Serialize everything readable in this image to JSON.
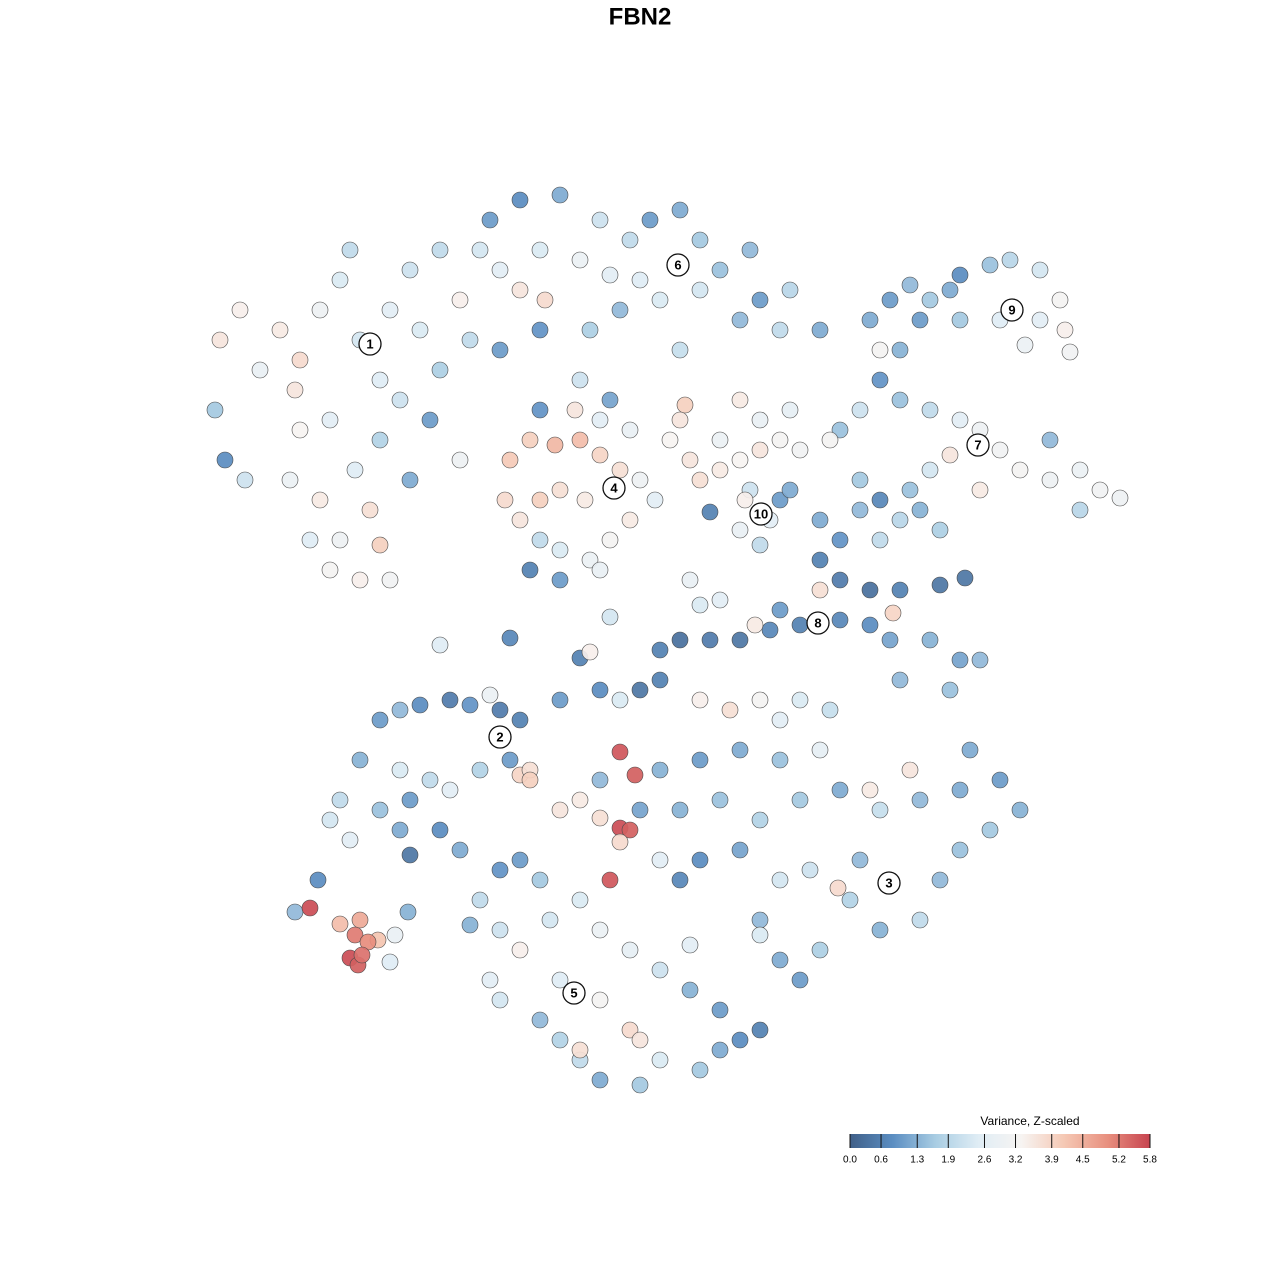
{
  "chart_data": {
    "type": "scatter",
    "title": "FBN2",
    "xlim": [
      0,
      1280
    ],
    "ylim": [
      1280,
      0
    ],
    "x": [
      220,
      240,
      260,
      215,
      225,
      245,
      280,
      300,
      295,
      320,
      340,
      350,
      330,
      300,
      290,
      320,
      340,
      330,
      360,
      380,
      370,
      355,
      380,
      400,
      380,
      360,
      390,
      410,
      440,
      420,
      440,
      460,
      470,
      410,
      430,
      460,
      390,
      310,
      490,
      520,
      560,
      540,
      500,
      520,
      545,
      580,
      600,
      630,
      650,
      680,
      700,
      720,
      750,
      760,
      790,
      820,
      780,
      740,
      700,
      660,
      620,
      590,
      640,
      610,
      480,
      500,
      540,
      680,
      510,
      530,
      555,
      580,
      600,
      620,
      640,
      655,
      630,
      610,
      590,
      560,
      540,
      520,
      505,
      530,
      560,
      600,
      585,
      560,
      540,
      575,
      600,
      630,
      540,
      580,
      610,
      670,
      690,
      700,
      720,
      740,
      760,
      780,
      800,
      740,
      760,
      685,
      680,
      720,
      790,
      750,
      770,
      760,
      780,
      790,
      745,
      740,
      710,
      870,
      890,
      910,
      930,
      950,
      960,
      990,
      1010,
      1040,
      1060,
      1065,
      1070,
      1040,
      1025,
      1000,
      960,
      920,
      900,
      880,
      900,
      930,
      960,
      980,
      1000,
      1020,
      1050,
      1080,
      1100,
      1120,
      1080,
      1050,
      980,
      950,
      930,
      910,
      880,
      860,
      840,
      860,
      830,
      880,
      820,
      840,
      870,
      900,
      940,
      965,
      820,
      840,
      860,
      880,
      900,
      920,
      940,
      930,
      960,
      980,
      950,
      900,
      890,
      870,
      840,
      800,
      770,
      740,
      710,
      680,
      660,
      780,
      755,
      893,
      820,
      440,
      510,
      580,
      590,
      610,
      700,
      720,
      690,
      340,
      330,
      350,
      360,
      380,
      400,
      420,
      450,
      470,
      490,
      500,
      520,
      510,
      520,
      530,
      530,
      480,
      450,
      430,
      410,
      400,
      410,
      380,
      400,
      460,
      440,
      560,
      600,
      620,
      640,
      660,
      700,
      730,
      760,
      780,
      800,
      830,
      820,
      780,
      740,
      700,
      660,
      620,
      635,
      600,
      580,
      560,
      600,
      620,
      630,
      620,
      610,
      640,
      680,
      720,
      760,
      800,
      840,
      870,
      880,
      910,
      920,
      960,
      1000,
      1020,
      990,
      960,
      940,
      920,
      880,
      850,
      838,
      810,
      780,
      760,
      780,
      800,
      820,
      860,
      970,
      700,
      660,
      680,
      740,
      760,
      480,
      500,
      520,
      490,
      500,
      540,
      560,
      580,
      600,
      640,
      660,
      700,
      720,
      740,
      760,
      720,
      690,
      660,
      630,
      600,
      580,
      540,
      550,
      560,
      600,
      630,
      580,
      520,
      500,
      470,
      640,
      690,
      295,
      310,
      318,
      340,
      360,
      378,
      355,
      368,
      350,
      358,
      362,
      390,
      395,
      408
    ],
    "y": [
      340,
      310,
      370,
      410,
      460,
      480,
      330,
      360,
      390,
      310,
      280,
      250,
      420,
      430,
      480,
      500,
      540,
      570,
      580,
      545,
      510,
      470,
      440,
      400,
      380,
      340,
      310,
      270,
      250,
      330,
      370,
      300,
      340,
      480,
      420,
      460,
      580,
      540,
      220,
      200,
      195,
      250,
      270,
      290,
      300,
      260,
      220,
      240,
      220,
      210,
      240,
      270,
      250,
      300,
      290,
      330,
      330,
      320,
      290,
      300,
      310,
      330,
      280,
      275,
      250,
      350,
      330,
      350,
      460,
      440,
      445,
      440,
      455,
      470,
      480,
      500,
      520,
      540,
      560,
      550,
      540,
      520,
      500,
      570,
      580,
      570,
      500,
      490,
      500,
      410,
      420,
      430,
      410,
      380,
      400,
      440,
      460,
      480,
      470,
      460,
      450,
      440,
      450,
      400,
      420,
      405,
      420,
      440,
      410,
      490,
      520,
      545,
      500,
      490,
      500,
      530,
      512,
      320,
      300,
      285,
      300,
      290,
      275,
      265,
      260,
      270,
      300,
      330,
      352,
      320,
      345,
      320,
      320,
      320,
      350,
      380,
      400,
      410,
      420,
      430,
      450,
      470,
      480,
      470,
      490,
      498,
      510,
      440,
      490,
      455,
      470,
      490,
      500,
      480,
      430,
      410,
      440,
      350,
      560,
      580,
      590,
      590,
      585,
      578,
      520,
      540,
      510,
      540,
      520,
      510,
      530,
      640,
      660,
      660,
      690,
      680,
      640,
      625,
      620,
      625,
      630,
      640,
      640,
      640,
      650,
      610,
      625,
      613,
      590,
      645,
      638,
      658,
      652,
      617,
      605,
      600,
      580,
      800,
      820,
      840,
      760,
      720,
      710,
      705,
      700,
      705,
      695,
      710,
      720,
      760,
      775,
      770,
      780,
      770,
      790,
      780,
      800,
      830,
      855,
      810,
      770,
      850,
      830,
      700,
      690,
      700,
      690,
      680,
      700,
      710,
      700,
      720,
      700,
      710,
      750,
      760,
      750,
      760,
      770,
      752,
      775,
      780,
      800,
      810,
      818,
      828,
      830,
      842,
      880,
      810,
      810,
      800,
      820,
      800,
      790,
      790,
      810,
      770,
      800,
      790,
      780,
      810,
      830,
      850,
      880,
      920,
      930,
      900,
      888,
      870,
      880,
      920,
      960,
      980,
      950,
      860,
      750,
      860,
      860,
      880,
      850,
      935,
      900,
      930,
      950,
      980,
      1000,
      1020,
      1040,
      1060,
      1080,
      1085,
      1060,
      1070,
      1050,
      1040,
      1030,
      1010,
      990,
      970,
      950,
      930,
      900,
      880,
      920,
      980,
      1000,
      1030,
      1050,
      860,
      870,
      925,
      1040,
      945,
      912,
      908,
      880,
      924,
      920,
      940,
      935,
      942,
      958,
      965,
      955,
      962,
      935,
      912
    ],
    "values": [
      3.6,
      3.4,
      2.8,
      1.6,
      0.8,
      2.2,
      3.5,
      3.8,
      3.6,
      3.0,
      2.4,
      2.0,
      2.6,
      3.3,
      2.9,
      3.5,
      3.0,
      3.2,
      3.4,
      4.0,
      3.7,
      2.5,
      1.8,
      2.2,
      2.5,
      2.3,
      2.6,
      2.2,
      2.0,
      2.4,
      1.7,
      3.4,
      2.0,
      1.2,
      1.0,
      3.0,
      3.1,
      2.5,
      1.0,
      0.8,
      1.2,
      2.4,
      2.6,
      3.6,
      3.8,
      2.9,
      2.2,
      2.0,
      1.0,
      1.2,
      1.6,
      1.5,
      1.4,
      1.0,
      1.9,
      1.2,
      2.0,
      1.4,
      2.3,
      2.4,
      1.4,
      1.7,
      2.5,
      2.6,
      2.3,
      1.0,
      0.9,
      2.1,
      4.1,
      4.0,
      4.4,
      4.3,
      3.9,
      3.7,
      3.0,
      2.6,
      3.5,
      3.2,
      2.9,
      2.4,
      2.0,
      3.6,
      3.8,
      0.6,
      1.0,
      2.8,
      3.5,
      3.7,
      4.0,
      3.6,
      2.6,
      2.8,
      0.9,
      2.2,
      1.1,
      3.3,
      3.6,
      3.7,
      3.5,
      3.3,
      3.6,
      3.2,
      3.1,
      3.5,
      2.8,
      4.0,
      3.6,
      2.9,
      2.7,
      2.2,
      2.6,
      2.0,
      1.0,
      1.2,
      3.4,
      2.8,
      0.6,
      1.2,
      1.0,
      1.4,
      1.6,
      1.2,
      0.8,
      1.5,
      1.9,
      2.3,
      3.2,
      3.4,
      3.1,
      2.6,
      2.9,
      2.5,
      1.6,
      1.0,
      1.3,
      0.9,
      1.5,
      2.0,
      2.6,
      3.0,
      3.1,
      3.2,
      3.0,
      2.9,
      3.1,
      3.0,
      1.9,
      1.4,
      3.5,
      3.6,
      2.3,
      1.5,
      0.7,
      1.6,
      1.5,
      2.2,
      3.2,
      3.2,
      0.6,
      0.5,
      0.3,
      0.6,
      0.4,
      0.4,
      1.2,
      0.9,
      1.4,
      2.0,
      1.9,
      1.3,
      1.7,
      1.3,
      1.1,
      1.4,
      1.5,
      1.4,
      1.1,
      0.8,
      0.7,
      0.6,
      0.7,
      0.4,
      0.5,
      0.3,
      0.6,
      1.0,
      3.5,
      3.9,
      3.7,
      2.5,
      0.7,
      0.6,
      3.4,
      2.3,
      2.4,
      2.6,
      2.8,
      2.0,
      2.3,
      2.6,
      1.3,
      1.0,
      1.4,
      0.8,
      0.5,
      0.9,
      2.9,
      0.5,
      0.6,
      1.0,
      3.9,
      3.7,
      4.0,
      1.8,
      2.6,
      2.0,
      1.0,
      1.2,
      0.4,
      1.5,
      2.4,
      1.2,
      0.8,
      1.0,
      0.8,
      2.4,
      0.4,
      0.6,
      3.4,
      3.7,
      3.2,
      2.6,
      2.4,
      2.1,
      2.7,
      1.5,
      1.2,
      1.0,
      1.3,
      5.6,
      5.5,
      1.4,
      3.5,
      3.6,
      3.7,
      5.7,
      5.5,
      3.8,
      5.6,
      1.1,
      1.3,
      1.5,
      1.8,
      1.6,
      1.2,
      3.5,
      2.1,
      3.6,
      1.4,
      1.2,
      1.0,
      1.3,
      1.6,
      1.5,
      1.4,
      2.0,
      1.3,
      1.8,
      3.8,
      2.2,
      2.3,
      1.4,
      1.2,
      1.0,
      1.7,
      1.4,
      1.2,
      0.8,
      2.6,
      0.7,
      1.1,
      2.4,
      2.0,
      2.2,
      3.4,
      2.6,
      2.3,
      1.4,
      1.8,
      2.0,
      1.2,
      1.6,
      2.4,
      1.6,
      1.2,
      0.8,
      0.6,
      1.0,
      1.3,
      2.2,
      2.7,
      2.9,
      2.4,
      1.6,
      2.3,
      2.5,
      3.2,
      3.8,
      3.7,
      1.0,
      0.9,
      1.3,
      3.6,
      2.6,
      1.4,
      5.7,
      0.8,
      4.3,
      4.6,
      4.2,
      5.2,
      5.0,
      5.7,
      5.5,
      5.3,
      2.5,
      2.8,
      1.3
    ],
    "cluster_labels": [
      {
        "label": "1",
        "x": 370,
        "y": 344
      },
      {
        "label": "2",
        "x": 500,
        "y": 737
      },
      {
        "label": "3",
        "x": 889,
        "y": 883
      },
      {
        "label": "4",
        "x": 614,
        "y": 488
      },
      {
        "label": "5",
        "x": 574,
        "y": 993
      },
      {
        "label": "6",
        "x": 678,
        "y": 265
      },
      {
        "label": "7",
        "x": 978,
        "y": 445
      },
      {
        "label": "8",
        "x": 818,
        "y": 623
      },
      {
        "label": "9",
        "x": 1012,
        "y": 310
      },
      {
        "label": "10",
        "x": 761,
        "y": 514
      }
    ],
    "colorbar_title": "Variance, Z-scaled",
    "zlim": [
      0,
      5.8
    ],
    "zticks": [
      {
        "value": 0,
        "label": "0.0"
      },
      0.6,
      1.3,
      1.9,
      2.6,
      3.2,
      3.9,
      4.5,
      5.2,
      5.8
    ],
    "colorscale": [
      "#3f5f88",
      "#5b8ec2",
      "#a9cde3",
      "#e0edf5",
      "#f7f4f2",
      "#f5c8b4",
      "#e8907f",
      "#c7434f"
    ],
    "grid": false
  }
}
